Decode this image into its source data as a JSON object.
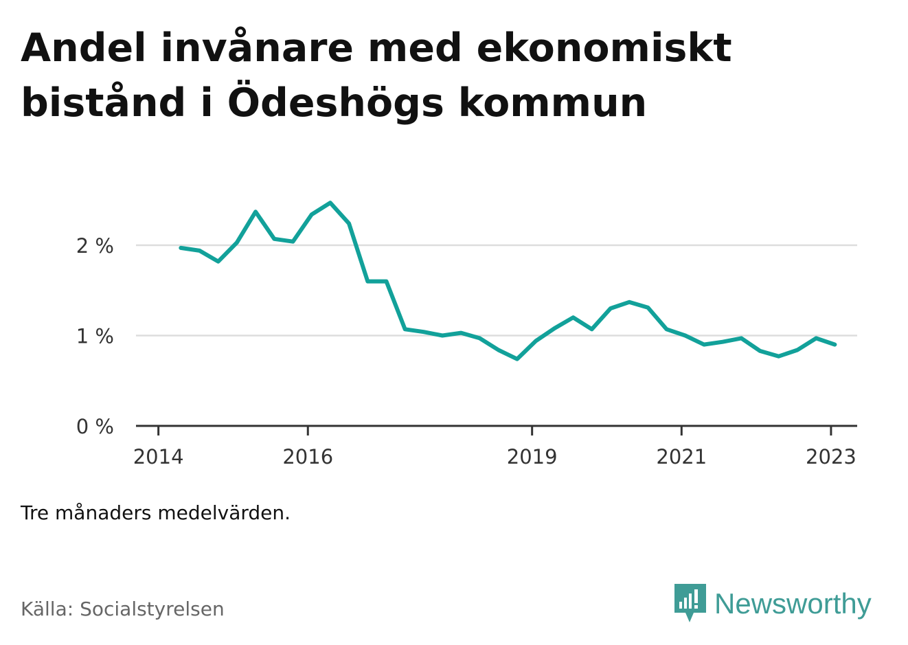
{
  "title": "Andel invånare med ekonomiskt bistånd i Ödeshögs kommun",
  "note": "Tre månaders medelvärden.",
  "source": "Källa: Socialstyrelsen",
  "brand": {
    "name": "Newsworthy"
  },
  "colors": {
    "line": "#12a19a",
    "grid": "#dddddd",
    "axis": "#333333",
    "brand": "#3f9c96"
  },
  "icons": {
    "brand": "newsworthy-logo-icon"
  },
  "chart_data": {
    "type": "line",
    "title": "Andel invånare med ekonomiskt bistånd i Ödeshögs kommun",
    "xlabel": "",
    "ylabel": "",
    "y_unit": "%",
    "ylim": [
      0,
      2.6
    ],
    "yticks": [
      {
        "value": 0,
        "label": "0 %"
      },
      {
        "value": 1,
        "label": "1 %"
      },
      {
        "value": 2,
        "label": "2 %"
      }
    ],
    "xticks": [
      {
        "value": 2014,
        "label": "2014"
      },
      {
        "value": 2016,
        "label": "2016"
      },
      {
        "value": 2019,
        "label": "2019"
      },
      {
        "value": 2021,
        "label": "2021"
      },
      {
        "value": 2023,
        "label": "2023"
      }
    ],
    "grid": true,
    "legend": "none",
    "series": [
      {
        "name": "",
        "x": [
          2014.3,
          2014.55,
          2014.8,
          2015.05,
          2015.3,
          2015.55,
          2015.8,
          2016.05,
          2016.3,
          2016.55,
          2016.8,
          2017.05,
          2017.3,
          2017.55,
          2017.8,
          2018.05,
          2018.3,
          2018.55,
          2018.8,
          2019.05,
          2019.3,
          2019.55,
          2019.8,
          2020.05,
          2020.3,
          2020.55,
          2020.8,
          2021.05,
          2021.3,
          2021.55,
          2021.8,
          2022.05,
          2022.3,
          2022.55,
          2022.8,
          2023.05
        ],
        "values": [
          1.97,
          1.94,
          1.82,
          2.03,
          2.37,
          2.07,
          2.04,
          2.34,
          2.47,
          2.24,
          1.6,
          1.6,
          1.07,
          1.04,
          1.0,
          1.03,
          0.97,
          0.84,
          0.74,
          0.94,
          1.08,
          1.2,
          1.07,
          1.3,
          1.37,
          1.31,
          1.07,
          1.0,
          0.9,
          0.93,
          0.97,
          0.83,
          0.77,
          0.84,
          0.97,
          0.9
        ]
      }
    ]
  }
}
